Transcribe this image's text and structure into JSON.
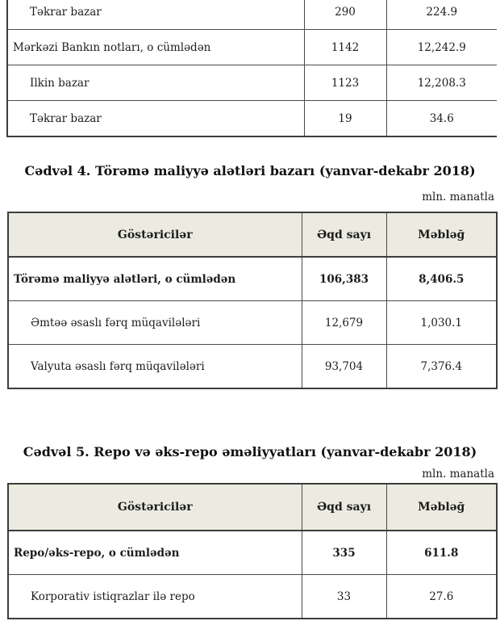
{
  "top_table": {
    "rows": [
      {
        "label": "Təkrar bazar",
        "indent": 1,
        "bold": false,
        "deal_count": "290",
        "amount": "224.9"
      },
      {
        "label": "Mərkəzi Bankın notları, o cümlədən",
        "indent": 0,
        "bold": false,
        "deal_count": "1142",
        "amount": "12,242.9"
      },
      {
        "label": "Ilkin bazar",
        "indent": 1,
        "bold": false,
        "deal_count": "1123",
        "amount": "12,208.3"
      },
      {
        "label": "Təkrar bazar",
        "indent": 1,
        "bold": false,
        "deal_count": "19",
        "amount": "34.6"
      }
    ]
  },
  "table4": {
    "title": "Cədvəl 4. Törəmə maliyyə alətləri bazarı (yanvar-dekabr 2018)",
    "unit_label": "mln. manatla",
    "headers": [
      "Göstəricilər",
      "Əqd sayı",
      "Məbləğ"
    ],
    "rows": [
      {
        "label": "Törəmə maliyyə alətləri, o cümlədən",
        "indent": 0,
        "bold": true,
        "deal_count": "106,383",
        "amount": "8,406.5"
      },
      {
        "label": "Əmtəə əsaslı fərq müqavilələri",
        "indent": 1,
        "bold": false,
        "deal_count": "12,679",
        "amount": "1,030.1"
      },
      {
        "label": "Valyuta əsaslı fərq müqavilələri",
        "indent": 1,
        "bold": false,
        "deal_count": "93,704",
        "amount": "7,376.4"
      }
    ]
  },
  "table5": {
    "title": "Cədvəl 5. Repo və əks-repo əməliyyatları (yanvar-dekabr 2018)",
    "unit_label": "mln. manatla",
    "headers": [
      "Göstəricilər",
      "Əqd sayı",
      "Məbləğ"
    ],
    "rows": [
      {
        "label": "Repo/əks-repo, o cümlədən",
        "indent": 0,
        "bold": true,
        "deal_count": "335",
        "amount": "611.8"
      },
      {
        "label": "Korporativ istiqrazlar ilə repo",
        "indent": 1,
        "bold": false,
        "deal_count": "33",
        "amount": "27.6"
      }
    ]
  },
  "colors": {
    "header_bg": "#ecebdf",
    "border": "#3d3d3d",
    "text": "#1c1c1c"
  }
}
